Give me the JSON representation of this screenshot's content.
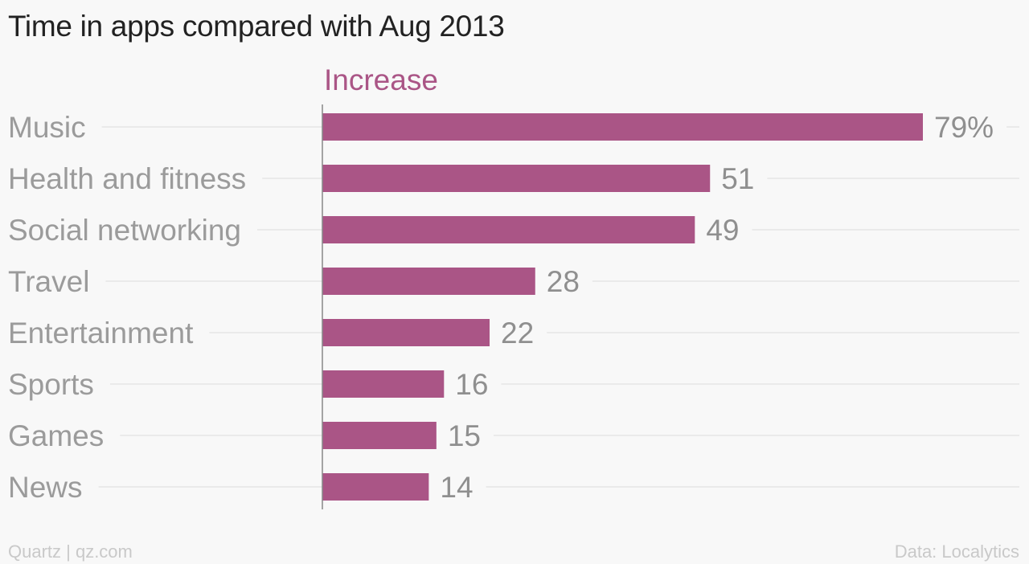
{
  "title": "Time in apps compared with Aug 2013",
  "source_credit": "Quartz | qz.com",
  "data_credit": "Data: Localytics",
  "colors": {
    "bar": "#aa5586",
    "series_label": "#aa5586",
    "category_label": "#9b9b9b",
    "value_label": "#8f8f8f",
    "gridline": "#e6e6e6",
    "axis": "#888888",
    "background": "#f8f8f8"
  },
  "chart_data": {
    "type": "bar",
    "orientation": "horizontal",
    "categories": [
      "Music",
      "Health and fitness",
      "Social networking",
      "Travel",
      "Entertainment",
      "Sports",
      "Games",
      "News"
    ],
    "series": [
      {
        "name": "Increase",
        "values": [
          79,
          51,
          49,
          28,
          22,
          16,
          15,
          14
        ]
      }
    ],
    "value_labels": [
      "79%",
      "51",
      "49",
      "28",
      "22",
      "16",
      "15",
      "14"
    ],
    "xlim": [
      0,
      79
    ],
    "grid": true,
    "legend": "top"
  }
}
